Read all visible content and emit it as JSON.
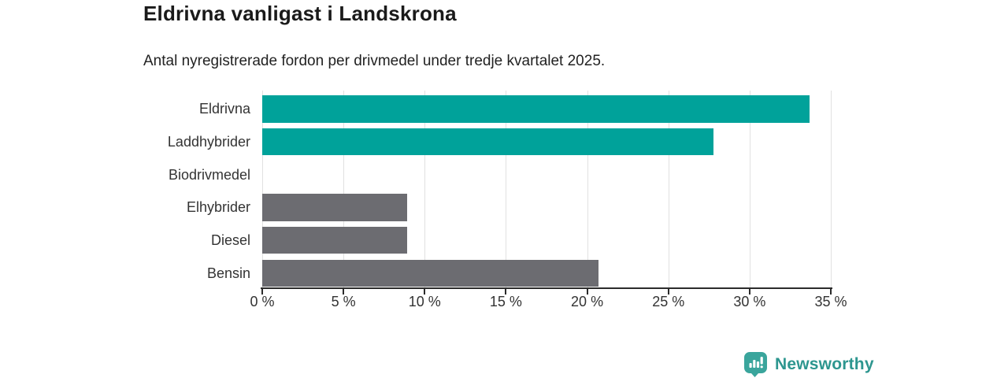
{
  "chart_data": {
    "type": "bar",
    "orientation": "horizontal",
    "title": "Eldrivna vanligast i Landskrona",
    "subtitle": "Antal nyregistrerade fordon per drivmedel under tredje kvartalet 2025.",
    "categories": [
      "Eldrivna",
      "Laddhybrider",
      "Biodrivmedel",
      "Elhybrider",
      "Diesel",
      "Bensin"
    ],
    "values": [
      33.7,
      27.8,
      0,
      8.9,
      8.9,
      20.7
    ],
    "unit": "%",
    "xlim": [
      0,
      35
    ],
    "xticks": [
      0,
      5,
      10,
      15,
      20,
      25,
      30,
      35
    ],
    "xtick_labels": [
      "0 %",
      "5 %",
      "10 %",
      "15 %",
      "20 %",
      "25 %",
      "30 %",
      "35 %"
    ],
    "bar_colors": [
      "#00a29a",
      "#00a29a",
      "#00a29a",
      "#6c6c71",
      "#6c6c71",
      "#6c6c71"
    ],
    "grid": "vertical",
    "legend": "none",
    "colors": {
      "accent_teal": "#00a29a",
      "neutral_gray": "#6c6c71",
      "gridline": "#e1e1e1",
      "axis": "#2b2b2b",
      "text": "#333333"
    }
  },
  "footer": {
    "brand": "Newsworthy",
    "logo_icon_color": "#3aa59c",
    "logo_text_color": "#2d968f"
  }
}
